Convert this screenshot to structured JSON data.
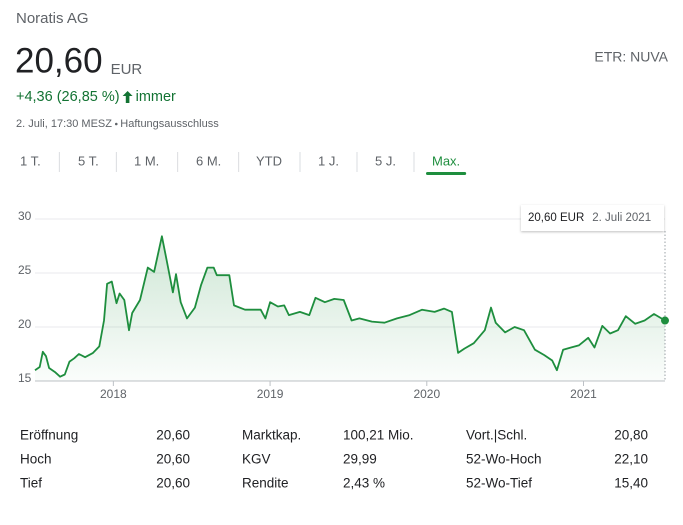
{
  "header": {
    "company": "Noratis AG",
    "price": "20,60",
    "currency": "EUR",
    "exchange": "ETR: NUVA",
    "change": "+4,36 (26,85 %)",
    "period": "immer",
    "timestamp": "2. Juli, 17:30 MESZ",
    "disclaimer": "Haftungsausschluss"
  },
  "tabs": [
    "1 T.",
    "5 T.",
    "1 M.",
    "6 M.",
    "YTD",
    "1 J.",
    "5 J.",
    "Max."
  ],
  "active_tab": 7,
  "chart_data": {
    "type": "line",
    "x": [
      2017.5,
      2017.53,
      2017.55,
      2017.57,
      2017.59,
      2017.63,
      2017.66,
      2017.69,
      2017.72,
      2017.75,
      2017.78,
      2017.82,
      2017.87,
      2017.91,
      2017.94,
      2017.96,
      2017.99,
      2018.02,
      2018.04,
      2018.07,
      2018.1,
      2018.12,
      2018.17,
      2018.22,
      2018.26,
      2018.31,
      2018.34,
      2018.38,
      2018.4,
      2018.43,
      2018.47,
      2018.52,
      2018.56,
      2018.6,
      2018.64,
      2018.66,
      2018.74,
      2018.77,
      2018.84,
      2018.94,
      2018.97,
      2019.0,
      2019.05,
      2019.09,
      2019.12,
      2019.19,
      2019.25,
      2019.29,
      2019.35,
      2019.41,
      2019.47,
      2019.52,
      2019.57,
      2019.65,
      2019.73,
      2019.81,
      2019.89,
      2019.97,
      2020.05,
      2020.11,
      2020.16,
      2020.2,
      2020.24,
      2020.3,
      2020.37,
      2020.41,
      2020.44,
      2020.5,
      2020.56,
      2020.62,
      2020.69,
      2020.75,
      2020.8,
      2020.83,
      2020.87,
      2020.92,
      2020.97,
      2021.03,
      2021.07,
      2021.12,
      2021.17,
      2021.22,
      2021.27,
      2021.33,
      2021.39,
      2021.45,
      2021.52
    ],
    "series": [
      {
        "color": "#1e8e3e",
        "values": [
          16.0,
          16.3,
          17.7,
          17.3,
          16.2,
          15.8,
          15.4,
          15.6,
          16.8,
          17.1,
          17.5,
          17.2,
          17.6,
          18.2,
          20.6,
          24.0,
          24.2,
          22.2,
          23.1,
          22.5,
          19.7,
          21.3,
          22.5,
          25.5,
          25.1,
          28.4,
          26.2,
          23.2,
          24.9,
          22.3,
          20.8,
          21.8,
          23.9,
          25.5,
          25.5,
          24.8,
          24.8,
          22.0,
          21.6,
          21.6,
          20.8,
          22.3,
          21.9,
          22.0,
          21.1,
          21.4,
          21.1,
          22.7,
          22.3,
          22.6,
          22.5,
          20.6,
          20.8,
          20.5,
          20.4,
          20.8,
          21.1,
          21.6,
          21.4,
          21.7,
          21.4,
          17.6,
          18.0,
          18.5,
          19.7,
          21.8,
          20.4,
          19.5,
          20.0,
          19.7,
          17.9,
          17.4,
          16.9,
          16.0,
          17.9,
          18.1,
          18.3,
          19.0,
          18.1,
          20.1,
          19.4,
          19.7,
          21.0,
          20.3,
          20.6,
          21.2,
          20.6
        ]
      }
    ],
    "xlim": [
      2017.5,
      2021.52
    ],
    "xticks": [
      2018,
      2019,
      2020,
      2021
    ],
    "ylim": [
      15,
      30
    ],
    "yticks": [
      15,
      20,
      25,
      30
    ],
    "grid": true,
    "tooltip": {
      "value": "20,60 EUR",
      "date": "2. Juli 2021"
    }
  },
  "stats": [
    [
      {
        "label": "Eröffnung",
        "value": "20,60"
      },
      {
        "label": "Hoch",
        "value": "20,60"
      },
      {
        "label": "Tief",
        "value": "20,60"
      }
    ],
    [
      {
        "label": "Marktkap.",
        "value": "100,21 Mio."
      },
      {
        "label": "KGV",
        "value": "29,99"
      },
      {
        "label": "Rendite",
        "value": "2,43 %"
      }
    ],
    [
      {
        "label": "Vort.|Schl.",
        "value": "20,80"
      },
      {
        "label": "52-Wo-Hoch",
        "value": "22,10"
      },
      {
        "label": "52-Wo-Tief",
        "value": "15,40"
      }
    ]
  ]
}
